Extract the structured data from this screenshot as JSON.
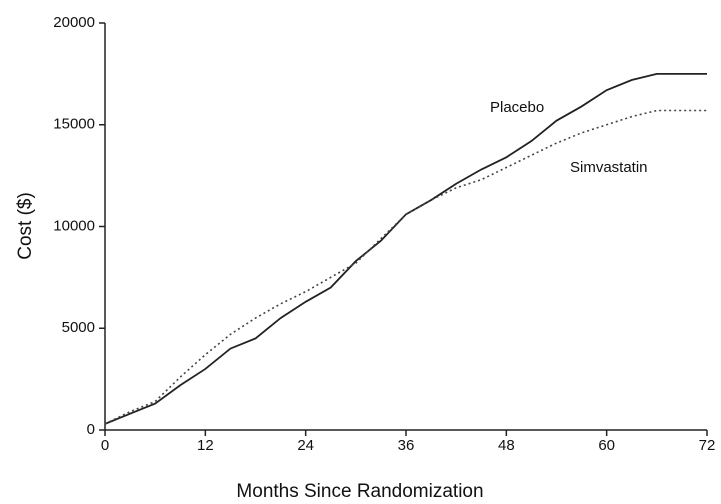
{
  "chart_data": {
    "type": "line",
    "x_label": "Months Since Randomization",
    "y_label": "Cost ($)",
    "x": [
      0,
      3,
      6,
      9,
      12,
      15,
      18,
      21,
      24,
      27,
      30,
      33,
      36,
      39,
      42,
      45,
      48,
      51,
      54,
      57,
      60,
      63,
      66,
      72
    ],
    "series": [
      {
        "name": "Placebo",
        "color": "#222222",
        "dash": "solid",
        "values": [
          300,
          800,
          1300,
          2200,
          3000,
          4000,
          4500,
          5500,
          6300,
          7000,
          8300,
          9300,
          10600,
          11300,
          12100,
          12800,
          13400,
          14200,
          15200,
          15900,
          16700,
          17200,
          17500,
          17500
        ]
      },
      {
        "name": "Simvastatin",
        "color": "#444444",
        "dash": "dotted",
        "values": [
          300,
          900,
          1400,
          2600,
          3700,
          4700,
          5500,
          6200,
          6800,
          7500,
          8200,
          9400,
          10600,
          11300,
          11900,
          12300,
          12900,
          13500,
          14100,
          14600,
          15000,
          15400,
          15700,
          15700
        ]
      }
    ],
    "xlim": [
      0,
      72
    ],
    "xticks": [
      0,
      12,
      24,
      36,
      48,
      60,
      72
    ],
    "ylim": [
      0,
      20000
    ],
    "yticks": [
      0,
      5000,
      10000,
      15000,
      20000
    ],
    "grid": false
  }
}
